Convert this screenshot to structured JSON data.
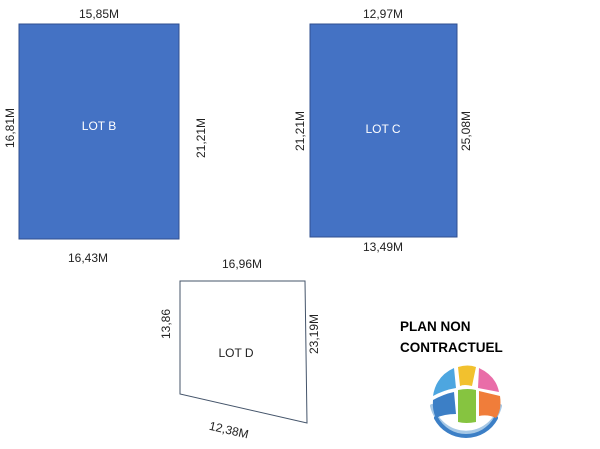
{
  "colors": {
    "lot_fill": "#4472C4",
    "lot_stroke": "#2F4F8F",
    "lot_label_on_fill": "#ffffff",
    "outline_stroke": "#44546A",
    "text": "#222222"
  },
  "lots": {
    "b": {
      "label": "LOT B",
      "top": "15,85M",
      "left": "16,81M",
      "right": "21,21M",
      "bottom": "16,43M"
    },
    "c": {
      "label": "LOT C",
      "top": "12,97M",
      "left": "21,21M",
      "right": "25,08M",
      "bottom": "13,49M"
    },
    "d": {
      "label": "LOT D",
      "top": "16,96M",
      "left": "13,86",
      "right": "23,19M",
      "bottom": "12,38M"
    }
  },
  "note": {
    "line1": "PLAN NON",
    "line2": "CONTRACTUEL"
  },
  "logo": {
    "icon": "colorful-globe-logo-icon",
    "colors": [
      "#4DA6E0",
      "#F2C12E",
      "#E96DA8",
      "#86C440",
      "#F07D3A",
      "#3C7FC6",
      "#A6C8E6"
    ]
  }
}
